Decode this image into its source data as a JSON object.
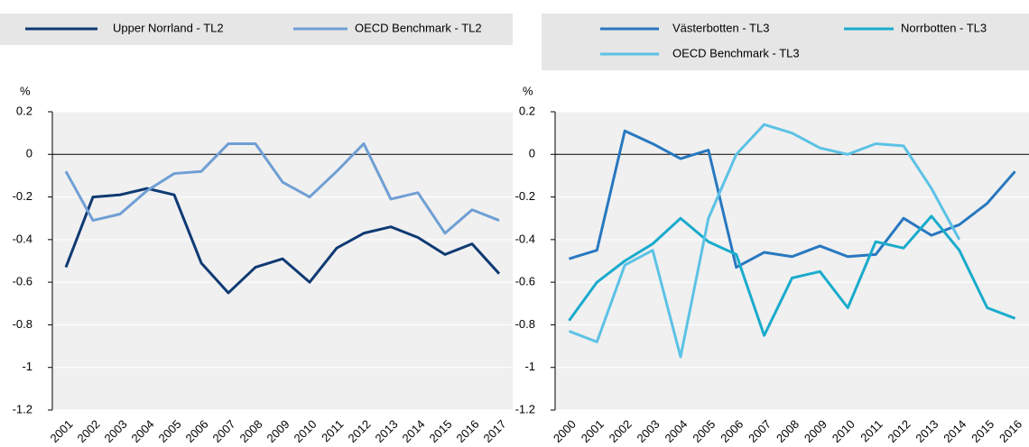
{
  "chart_data": [
    {
      "type": "line",
      "y_label": "%",
      "categories": [
        "2001",
        "2002",
        "2003",
        "2004",
        "2005",
        "2006",
        "2007",
        "2008",
        "2009",
        "2010",
        "2011",
        "2012",
        "2013",
        "2014",
        "2015",
        "2016",
        "2017"
      ],
      "series": [
        {
          "name": "Upper Norrland - TL2",
          "color": "#0f3a73",
          "values": [
            -0.53,
            -0.2,
            -0.19,
            -0.16,
            -0.19,
            -0.51,
            -0.65,
            -0.53,
            -0.49,
            -0.6,
            -0.44,
            -0.37,
            -0.34,
            -0.39,
            -0.47,
            -0.42,
            -0.56
          ]
        },
        {
          "name": "OECD Benchmark - TL2",
          "color": "#6f9fd4",
          "values": [
            -0.08,
            -0.31,
            -0.28,
            -0.17,
            -0.09,
            -0.08,
            0.05,
            0.05,
            -0.13,
            -0.2,
            -0.08,
            0.05,
            -0.21,
            -0.18,
            -0.37,
            -0.26,
            -0.31
          ]
        }
      ],
      "ylim": [
        -1.2,
        0.2
      ],
      "yticks": [
        0.2,
        0,
        -0.2,
        -0.4,
        -0.6,
        -0.8,
        -1,
        -1.2
      ]
    },
    {
      "type": "line",
      "y_label": "%",
      "categories": [
        "2000",
        "2001",
        "2002",
        "2003",
        "2004",
        "2005",
        "2006",
        "2007",
        "2008",
        "2009",
        "2010",
        "2011",
        "2012",
        "2013",
        "2014",
        "2015",
        "2016"
      ],
      "series": [
        {
          "name": "Västerbotten - TL3",
          "color": "#2878c0",
          "values": [
            -0.49,
            -0.45,
            0.11,
            0.05,
            -0.02,
            0.02,
            -0.53,
            -0.46,
            -0.48,
            -0.43,
            -0.48,
            -0.47,
            -0.3,
            -0.38,
            -0.33,
            -0.23,
            -0.08
          ]
        },
        {
          "name": "Norrbotten - TL3",
          "color": "#1aabcc",
          "values": [
            -0.78,
            -0.6,
            -0.5,
            -0.42,
            -0.3,
            -0.41,
            -0.47,
            -0.85,
            -0.58,
            -0.55,
            -0.72,
            -0.41,
            -0.44,
            -0.29,
            -0.45,
            -0.72,
            -0.77
          ]
        },
        {
          "name": "OECD Benchmark - TL3",
          "color": "#5cc2e6",
          "values": [
            -0.83,
            -0.88,
            -0.52,
            -0.45,
            -0.95,
            -0.3,
            0.0,
            0.14,
            0.1,
            0.03,
            0.0,
            0.05,
            0.04,
            -0.16,
            -0.4,
            null,
            null
          ]
        }
      ],
      "ylim": [
        -1.2,
        0.2
      ],
      "yticks": [
        0.2,
        0,
        -0.2,
        -0.4,
        -0.6,
        -0.8,
        -1,
        -1.2
      ]
    }
  ]
}
